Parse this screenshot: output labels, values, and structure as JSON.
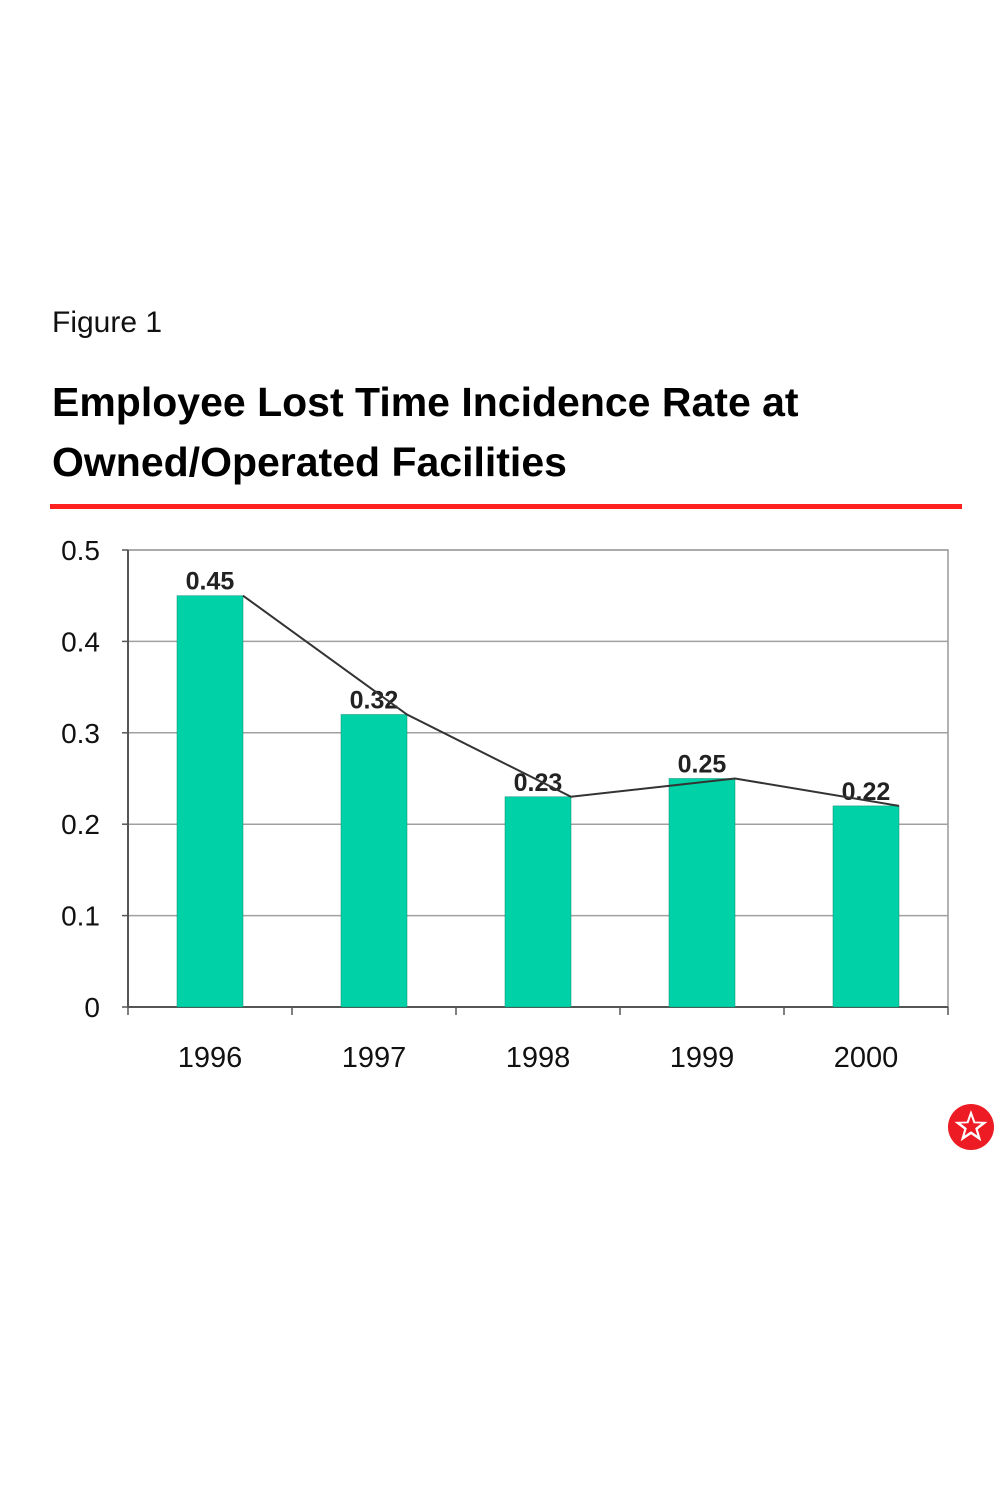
{
  "figure_label": "Figure 1",
  "title": "Employee Lost Time Incidence Rate at Owned/Operated Facilities",
  "colors": {
    "bar": "#00d1a6",
    "rule": "#ff2020",
    "logo": "#ed1c24"
  },
  "logo_icon": "star-logo-icon",
  "chart_data": {
    "type": "bar",
    "categories": [
      "1996",
      "1997",
      "1998",
      "1999",
      "2000"
    ],
    "values": [
      0.45,
      0.32,
      0.23,
      0.25,
      0.22
    ],
    "data_labels": [
      "0.45",
      "0.32",
      "0.23",
      "0.25",
      "0.22"
    ],
    "yticks": [
      "0",
      "0.1",
      "0.2",
      "0.3",
      "0.4",
      "0.5"
    ],
    "ylim": [
      0,
      0.5
    ],
    "grid": true,
    "trend_line": true,
    "title": "",
    "xlabel": "",
    "ylabel": ""
  }
}
